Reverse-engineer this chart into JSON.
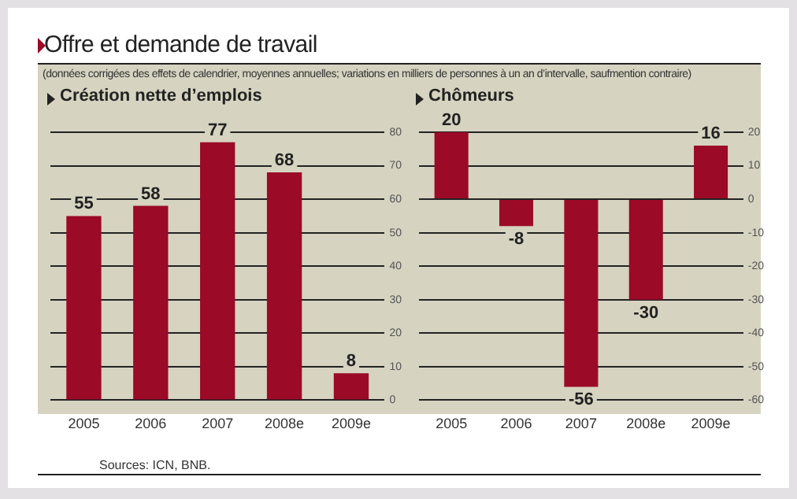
{
  "chart_data": [
    {
      "type": "bar",
      "title": "Création nette d’emplois",
      "annotations": [
        "Offre et demande de travail",
        "(données corrigées des effets de calendrier, moyennes annuelles; variations en milliers de personnes à un an d’intervalle, saufmention contraire)"
      ],
      "categories": [
        "2005",
        "2006",
        "2007",
        "2008e",
        "2009e"
      ],
      "values": [
        55,
        58,
        77,
        68,
        8
      ],
      "color": "#9b0a26",
      "ylim": [
        0,
        80
      ],
      "yticks": [
        0,
        10,
        20,
        30,
        40,
        50,
        60,
        70,
        80
      ],
      "grid": "y",
      "data_labels": true
    },
    {
      "type": "bar",
      "title": "Chômeurs",
      "annotations": [
        "Sources: ICN, BNB."
      ],
      "categories": [
        "2005",
        "2006",
        "2007",
        "2008e",
        "2009e"
      ],
      "values": [
        20,
        -8,
        -56,
        -30,
        16
      ],
      "color": "#9b0a26",
      "ylim": [
        -60,
        20
      ],
      "yticks": [
        -60,
        -50,
        -40,
        -30,
        -20,
        -10,
        0,
        10,
        20
      ],
      "grid": "y",
      "data_labels": true
    }
  ]
}
